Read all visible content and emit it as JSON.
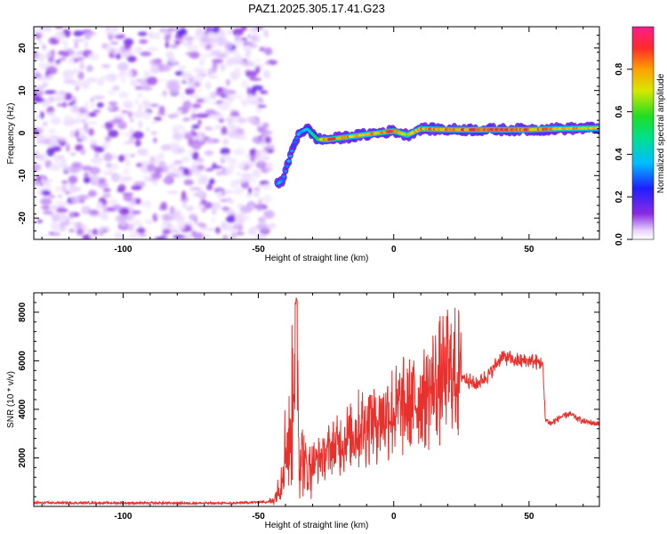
{
  "title": "PAZ1.2025.305.17.41.G23",
  "chart_data": [
    {
      "type": "heatmap",
      "xlabel": "Height of straight line (km)",
      "ylabel": "Frequency (Hz)",
      "xlim": [
        -133,
        76
      ],
      "ylim": [
        -25,
        25
      ],
      "xticks": [
        -100,
        -50,
        0,
        50
      ],
      "yticks": [
        -20,
        -10,
        0,
        10,
        20
      ],
      "colorbar": {
        "label": "Normalized spectral amplitude",
        "range": [
          0,
          1
        ],
        "ticks": [
          "0.0",
          "0.2",
          "0.4",
          "0.6",
          "0.8"
        ]
      },
      "noise_region_x": [
        -133,
        -45
      ],
      "ridge": [
        {
          "x": -43,
          "f": -12,
          "a": 0.35
        },
        {
          "x": -41,
          "f": -11,
          "a": 0.3
        },
        {
          "x": -39,
          "f": -7,
          "a": 0.35
        },
        {
          "x": -37,
          "f": -3,
          "a": 0.3
        },
        {
          "x": -35,
          "f": 0,
          "a": 0.35
        },
        {
          "x": -32,
          "f": 1,
          "a": 0.4
        },
        {
          "x": -28,
          "f": -1.5,
          "a": 0.55
        },
        {
          "x": -24,
          "f": -1.5,
          "a": 0.95
        },
        {
          "x": -18,
          "f": -1,
          "a": 0.8
        },
        {
          "x": -12,
          "f": -0.5,
          "a": 0.75
        },
        {
          "x": -6,
          "f": 0,
          "a": 0.8
        },
        {
          "x": 0,
          "f": 0.5,
          "a": 0.95
        },
        {
          "x": 5,
          "f": -0.5,
          "a": 0.7
        },
        {
          "x": 10,
          "f": 1,
          "a": 0.85
        },
        {
          "x": 20,
          "f": 0.8,
          "a": 0.8
        },
        {
          "x": 35,
          "f": 0.8,
          "a": 0.9
        },
        {
          "x": 50,
          "f": 0.8,
          "a": 0.85
        },
        {
          "x": 60,
          "f": 1,
          "a": 0.8
        },
        {
          "x": 76,
          "f": 1.2,
          "a": 0.75
        }
      ]
    },
    {
      "type": "line",
      "xlabel": "Height of straight line (km)",
      "ylabel": "SNR (10 * v/v)",
      "xlim": [
        -133,
        76
      ],
      "ylim": [
        0,
        8800
      ],
      "xticks": [
        -100,
        -50,
        0,
        50
      ],
      "yticks": [
        2000,
        4000,
        6000,
        8000
      ],
      "series": [
        {
          "name": "SNR",
          "color": "#e8302c",
          "x": [
            -133,
            -100,
            -60,
            -45,
            -42,
            -40,
            -38,
            -36,
            -35,
            -34,
            -32,
            -30,
            -25,
            -20,
            -15,
            -10,
            -5,
            0,
            5,
            10,
            15,
            20,
            25,
            30,
            35,
            40,
            45,
            50,
            55,
            56,
            58,
            62,
            65,
            70,
            76
          ],
          "y": [
            150,
            140,
            130,
            200,
            800,
            2500,
            2800,
            8700,
            2500,
            2200,
            1500,
            1800,
            2200,
            2600,
            3000,
            3400,
            3700,
            3900,
            4200,
            4400,
            5000,
            5400,
            5400,
            5000,
            5400,
            6200,
            6000,
            6000,
            5900,
            3600,
            3400,
            3700,
            3800,
            3500,
            3400
          ]
        }
      ]
    }
  ]
}
